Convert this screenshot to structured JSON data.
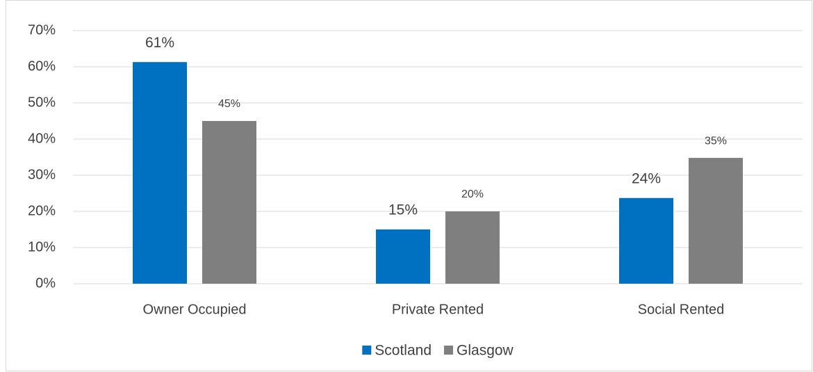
{
  "chart_data": {
    "type": "bar",
    "categories": [
      "Owner Occupied",
      "Private Rented",
      "Social Rented"
    ],
    "series": [
      {
        "name": "Scotland",
        "color": "#0070c0",
        "values": [
          61.3,
          15,
          23.7
        ],
        "value_labels": [
          "61%",
          "15%",
          "24%"
        ]
      },
      {
        "name": "Glasgow",
        "color": "#7f7f7f",
        "values": [
          45,
          20,
          34.8
        ],
        "value_labels": [
          "45%",
          "20%",
          "35%"
        ]
      }
    ],
    "ylim": [
      0,
      70
    ],
    "yticks": [
      {
        "value": 0,
        "label": "0%"
      },
      {
        "value": 10,
        "label": "10%"
      },
      {
        "value": 20,
        "label": "20%"
      },
      {
        "value": 30,
        "label": "30%"
      },
      {
        "value": 40,
        "label": "40%"
      },
      {
        "value": 50,
        "label": "50%"
      },
      {
        "value": 60,
        "label": "60%"
      },
      {
        "value": 70,
        "label": "70%"
      }
    ],
    "grid": true,
    "legend": "bottom"
  }
}
